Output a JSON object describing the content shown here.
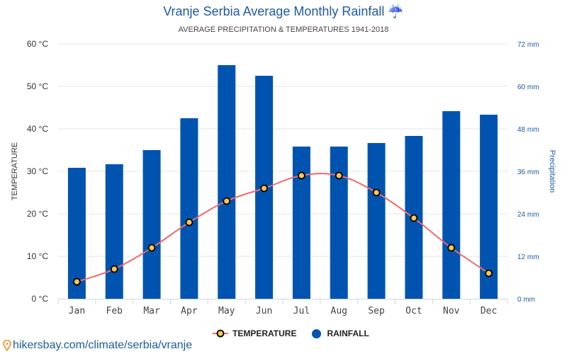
{
  "colors": {
    "rain_bar": "#0054b0",
    "temp_line": "#f06a6a",
    "temp_marker_fill": "#fcc455",
    "temp_marker_stroke": "#000000",
    "grid": "#e6e6e6",
    "axis": "#cfd8e6"
  },
  "footer": {
    "url_text": "hikersbay.com/climate/serbia/vranje",
    "pin_icon": "map-pin-icon"
  },
  "chart_data": {
    "type": "bar",
    "title": "Vranje Serbia Average Monthly Rainfall ☔",
    "subtitle": "AVERAGE PRECIPITATION & TEMPERATURES 1941-2018",
    "categories": [
      "Jan",
      "Feb",
      "Mar",
      "Apr",
      "May",
      "Jun",
      "Jul",
      "Aug",
      "Sep",
      "Oct",
      "Nov",
      "Dec"
    ],
    "series": [
      {
        "name": "TEMPERATURE",
        "type": "line",
        "axis": "left",
        "unit": "°C",
        "values": [
          4,
          7,
          12,
          18,
          23,
          26,
          29,
          29,
          25,
          19,
          12,
          6
        ]
      },
      {
        "name": "RAINFALL",
        "type": "bar",
        "axis": "right",
        "unit": "mm",
        "values": [
          37,
          38,
          42,
          51,
          66,
          63,
          43,
          43,
          44,
          46,
          53,
          52
        ]
      }
    ],
    "ylabel_left": "TEMPERATURE",
    "ylabel_right": "Precipitation",
    "ylim_left": [
      0,
      60
    ],
    "ylim_right": [
      0,
      72
    ],
    "yticks_left": [
      "0 °C",
      "10 °C",
      "20 °C",
      "30 °C",
      "40 °C",
      "50 °C",
      "60 °C"
    ],
    "yticks_right": [
      "0 mm",
      "12 mm",
      "24 mm",
      "36 mm",
      "48 mm",
      "60 mm",
      "72 mm"
    ],
    "grid": true,
    "legend": {
      "position": "bottom-center",
      "items": [
        "TEMPERATURE",
        "RAINFALL"
      ]
    }
  }
}
